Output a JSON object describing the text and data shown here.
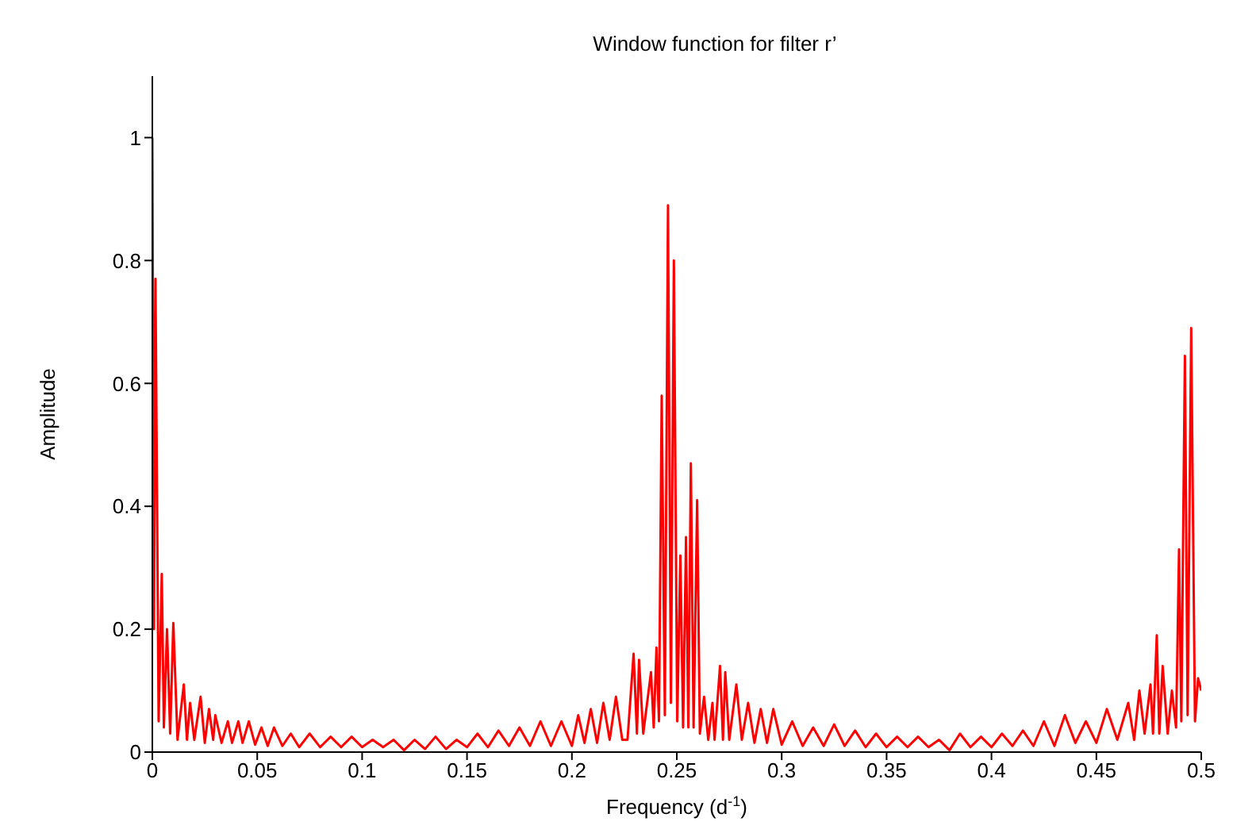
{
  "chart_data": {
    "type": "line",
    "title": "Window function for filter r’",
    "xlabel": "Frequency (d$^{-1}$)",
    "ylabel": "Amplitude",
    "xlim": [
      0,
      0.5
    ],
    "ylim": [
      0,
      1.1
    ],
    "xticks": [
      0,
      0.05,
      0.1,
      0.15,
      0.2,
      0.25,
      0.3,
      0.35,
      0.4,
      0.45,
      0.5
    ],
    "yticks": [
      0,
      0.2,
      0.4,
      0.6,
      0.8,
      1
    ],
    "line_style": "solid",
    "x": [
      0,
      0.0008,
      0.0015,
      0.003,
      0.0045,
      0.0055,
      0.007,
      0.0085,
      0.01,
      0.012,
      0.015,
      0.0165,
      0.018,
      0.02,
      0.023,
      0.025,
      0.027,
      0.029,
      0.03,
      0.033,
      0.036,
      0.038,
      0.041,
      0.043,
      0.046,
      0.049,
      0.052,
      0.055,
      0.058,
      0.062,
      0.066,
      0.07,
      0.075,
      0.08,
      0.085,
      0.09,
      0.095,
      0.1,
      0.105,
      0.11,
      0.115,
      0.12,
      0.125,
      0.13,
      0.135,
      0.14,
      0.145,
      0.15,
      0.155,
      0.16,
      0.165,
      0.17,
      0.175,
      0.18,
      0.185,
      0.19,
      0.195,
      0.2,
      0.203,
      0.206,
      0.209,
      0.212,
      0.215,
      0.218,
      0.221,
      0.224,
      0.2265,
      0.2294,
      0.231,
      0.232,
      0.234,
      0.2377,
      0.239,
      0.2403,
      0.2415,
      0.2428,
      0.2443,
      0.2458,
      0.2472,
      0.2486,
      0.2502,
      0.2517,
      0.253,
      0.2544,
      0.2555,
      0.2567,
      0.258,
      0.2597,
      0.261,
      0.263,
      0.265,
      0.267,
      0.268,
      0.2706,
      0.272,
      0.2731,
      0.275,
      0.2784,
      0.281,
      0.284,
      0.287,
      0.29,
      0.293,
      0.296,
      0.3,
      0.305,
      0.31,
      0.315,
      0.32,
      0.325,
      0.33,
      0.335,
      0.34,
      0.345,
      0.35,
      0.355,
      0.36,
      0.365,
      0.37,
      0.375,
      0.38,
      0.385,
      0.39,
      0.395,
      0.4,
      0.405,
      0.41,
      0.415,
      0.42,
      0.425,
      0.43,
      0.435,
      0.44,
      0.445,
      0.45,
      0.455,
      0.46,
      0.4652,
      0.468,
      0.4705,
      0.473,
      0.4758,
      0.477,
      0.4788,
      0.48,
      0.4816,
      0.484,
      0.486,
      0.488,
      0.4894,
      0.4905,
      0.4922,
      0.4935,
      0.4952,
      0.497,
      0.4985,
      0.5
    ],
    "series": [
      {
        "color": "#ff0000",
        "values": [
          1.0,
          0.2,
          0.77,
          0.05,
          0.29,
          0.04,
          0.2,
          0.03,
          0.21,
          0.02,
          0.11,
          0.02,
          0.08,
          0.02,
          0.09,
          0.015,
          0.07,
          0.02,
          0.06,
          0.015,
          0.05,
          0.015,
          0.05,
          0.015,
          0.05,
          0.012,
          0.04,
          0.01,
          0.04,
          0.01,
          0.03,
          0.008,
          0.03,
          0.008,
          0.025,
          0.008,
          0.025,
          0.008,
          0.02,
          0.008,
          0.02,
          0.003,
          0.02,
          0.005,
          0.025,
          0.005,
          0.02,
          0.008,
          0.03,
          0.008,
          0.035,
          0.01,
          0.04,
          0.01,
          0.05,
          0.01,
          0.05,
          0.01,
          0.06,
          0.015,
          0.07,
          0.015,
          0.08,
          0.02,
          0.09,
          0.02,
          0.02,
          0.16,
          0.03,
          0.15,
          0.03,
          0.13,
          0.04,
          0.17,
          0.05,
          0.58,
          0.06,
          0.89,
          0.08,
          0.8,
          0.05,
          0.32,
          0.04,
          0.35,
          0.04,
          0.47,
          0.04,
          0.41,
          0.03,
          0.09,
          0.02,
          0.08,
          0.02,
          0.14,
          0.02,
          0.13,
          0.02,
          0.11,
          0.02,
          0.08,
          0.015,
          0.07,
          0.015,
          0.07,
          0.012,
          0.05,
          0.01,
          0.04,
          0.01,
          0.045,
          0.01,
          0.035,
          0.008,
          0.03,
          0.008,
          0.025,
          0.008,
          0.025,
          0.008,
          0.02,
          0.003,
          0.03,
          0.008,
          0.025,
          0.008,
          0.03,
          0.01,
          0.035,
          0.01,
          0.05,
          0.01,
          0.06,
          0.015,
          0.05,
          0.015,
          0.07,
          0.02,
          0.08,
          0.02,
          0.1,
          0.03,
          0.11,
          0.03,
          0.19,
          0.03,
          0.14,
          0.03,
          0.1,
          0.04,
          0.33,
          0.05,
          0.645,
          0.06,
          0.69,
          0.05,
          0.12,
          0.1
        ]
      }
    ]
  }
}
